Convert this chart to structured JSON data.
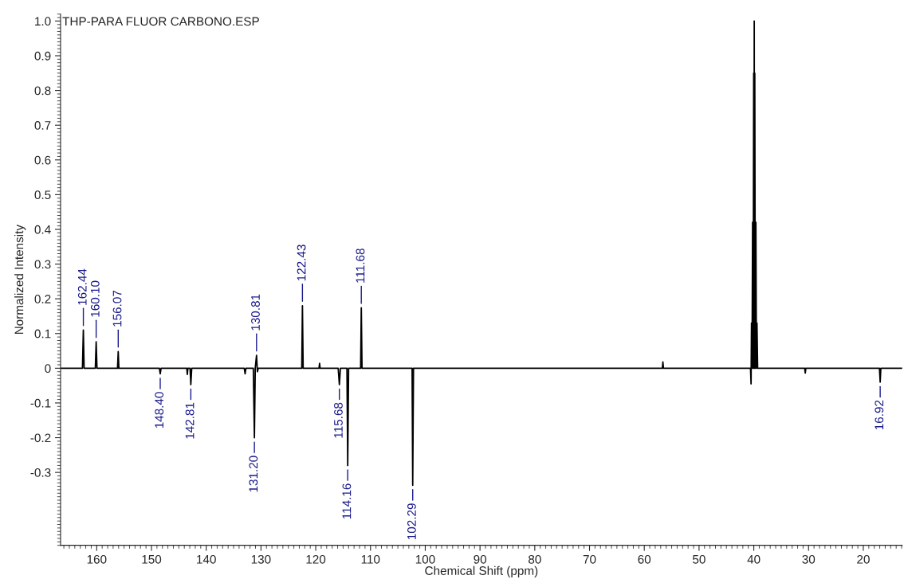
{
  "chart_data": {
    "type": "line",
    "title": "THP-PARA FLUOR CARBONO.ESP",
    "xlabel": "Chemical Shift (ppm)",
    "ylabel": "Normalized Intensity",
    "xlim": [
      166.6,
      12.9
    ],
    "xticks": [
      160,
      150,
      140,
      130,
      120,
      110,
      100,
      90,
      80,
      70,
      60,
      50,
      40,
      30,
      20
    ],
    "ylim": [
      -0.51,
      1.02
    ],
    "yticks": [
      -0.3,
      -0.2,
      -0.1,
      0,
      0.1,
      0.2,
      0.3,
      0.4,
      0.5,
      0.6,
      0.7,
      0.8,
      0.9,
      {
        "value": 1,
        "label": "1.0"
      }
    ],
    "grid": false,
    "legend": false,
    "marker": "none",
    "line_style": "solid",
    "series": [
      {
        "color": "#000000",
        "x": [
          166.6,
          162.6,
          162.44,
          162.3,
          160.25,
          160.1,
          159.95,
          156.2,
          156.07,
          155.95,
          148.55,
          148.4,
          148.25,
          143.55,
          143.45,
          143.35,
          142.95,
          142.81,
          142.65,
          133.05,
          132.9,
          132.75,
          131.4,
          131.2,
          131.05,
          130.81,
          130.65,
          130.5,
          122.55,
          122.43,
          122.3,
          119.4,
          119.3,
          119.2,
          115.9,
          115.68,
          115.5,
          114.3,
          114.16,
          114.0,
          111.8,
          111.68,
          111.55,
          102.4,
          102.29,
          102.15,
          56.7,
          56.6,
          56.5,
          40.6,
          40.5,
          40.42,
          40.32,
          40.22,
          40.12,
          40.02,
          39.97,
          39.92,
          39.87,
          39.82,
          39.72,
          39.62,
          39.52,
          39.42,
          39.3,
          30.7,
          30.6,
          30.5,
          17.05,
          16.92,
          16.8,
          12.9
        ],
        "values": [
          0,
          0,
          0.11,
          0,
          0,
          0.076,
          0,
          0,
          0.048,
          0,
          0,
          -0.016,
          0,
          0,
          -0.018,
          0,
          0,
          -0.047,
          0,
          0,
          -0.016,
          0,
          0,
          -0.2,
          0,
          0.037,
          -0.01,
          0,
          0,
          0.18,
          0,
          0,
          0.014,
          0,
          0,
          -0.047,
          0,
          0,
          -0.28,
          0,
          0,
          0.174,
          0,
          0,
          -0.337,
          0,
          0,
          0.018,
          0,
          0,
          -0.045,
          0.13,
          0,
          0.42,
          0,
          0.85,
          0,
          1.0,
          0,
          0.85,
          0,
          0.42,
          0,
          0.13,
          0,
          0,
          -0.014,
          0,
          0,
          -0.04,
          0,
          0
        ]
      }
    ],
    "annotations": [
      {
        "text": "162.44",
        "x": 162.44,
        "y": 0.11
      },
      {
        "text": "160.10",
        "x": 160.1,
        "y": 0.076
      },
      {
        "text": "156.07",
        "x": 156.07,
        "y": 0.048
      },
      {
        "text": "148.40",
        "x": 148.4,
        "y": -0.016
      },
      {
        "text": "142.81",
        "x": 142.81,
        "y": -0.047
      },
      {
        "text": "131.20",
        "x": 131.2,
        "y": -0.2
      },
      {
        "text": "130.81",
        "x": 130.81,
        "y": 0.037
      },
      {
        "text": "122.43",
        "x": 122.43,
        "y": 0.18
      },
      {
        "text": "115.68",
        "x": 115.68,
        "y": -0.047
      },
      {
        "text": "114.16",
        "x": 114.16,
        "y": -0.28
      },
      {
        "text": "111.68",
        "x": 111.68,
        "y": 0.174
      },
      {
        "text": "102.29",
        "x": 102.29,
        "y": -0.337
      },
      {
        "text": "16.92",
        "x": 16.92,
        "y": -0.04
      }
    ]
  }
}
